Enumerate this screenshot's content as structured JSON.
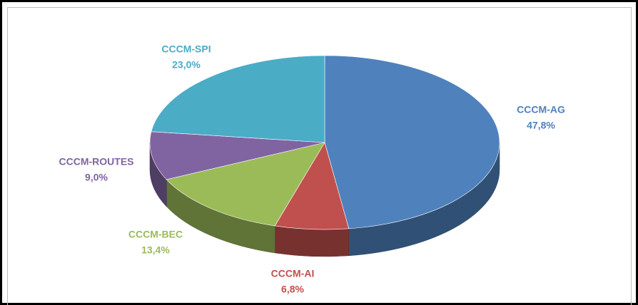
{
  "chart_data": {
    "type": "pie",
    "categories": [
      "CCCM-AG",
      "CCCM-AI",
      "CCCM-BEC",
      "CCCM-ROUTES",
      "CCCM-SPI"
    ],
    "values": [
      47.8,
      6.8,
      13.4,
      9.0,
      23.0
    ],
    "value_labels": [
      "47,8%",
      "6,8%",
      "13,4%",
      "9,0%",
      "23,0%"
    ],
    "colors": [
      "#4f81bd",
      "#c0504d",
      "#9bbb59",
      "#8064a2",
      "#4bacc6"
    ]
  }
}
